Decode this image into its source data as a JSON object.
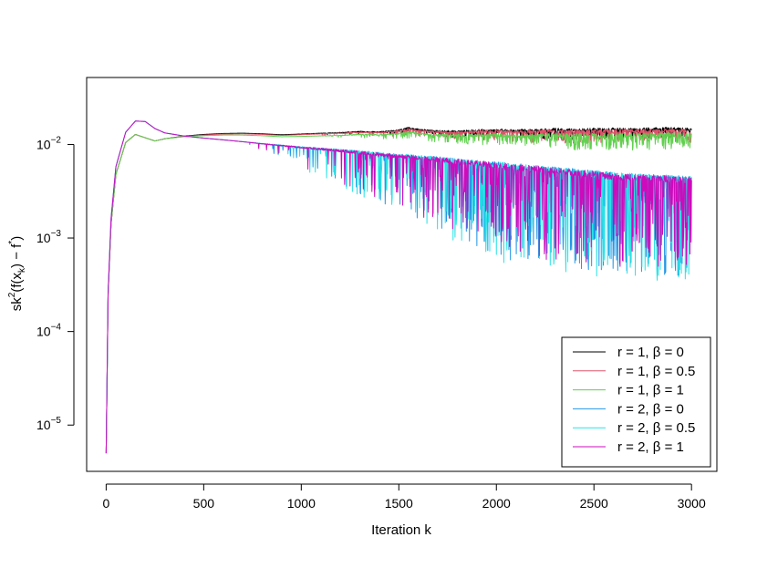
{
  "chart_data": {
    "type": "line",
    "title": "",
    "xlabel": "Iteration  k",
    "ylabel": "sk²(f(xₖ) − f*)",
    "ylabel_parts": {
      "base": "sk",
      "sup": "2",
      "mid": "(f(x",
      "sub": "k",
      "end": ") − f",
      "star": "*",
      "close": ")"
    },
    "xlim": [
      0,
      3000
    ],
    "ylim": [
      3.2e-06,
      0.052
    ],
    "log_y": true,
    "grid": false,
    "legend_position": "bottom-right",
    "x_ticks": [
      {
        "value": 0,
        "label": "0"
      },
      {
        "value": 500,
        "label": "500"
      },
      {
        "value": 1000,
        "label": "1000"
      },
      {
        "value": 1500,
        "label": "1500"
      },
      {
        "value": 2000,
        "label": "2000"
      },
      {
        "value": 2500,
        "label": "2500"
      },
      {
        "value": 3000,
        "label": "3000"
      }
    ],
    "y_ticks": [
      {
        "value": 0.01,
        "base": "10",
        "exp": "−2"
      },
      {
        "value": 0.001,
        "base": "10",
        "exp": "−3"
      },
      {
        "value": 0.0001,
        "base": "10",
        "exp": "−4"
      },
      {
        "value": 1e-05,
        "base": "10",
        "exp": "−5"
      }
    ],
    "series": [
      {
        "name": "r = 1, β = 0",
        "color": "#000000",
        "x": [
          0,
          10,
          25,
          50,
          100,
          150,
          200,
          250,
          300,
          400,
          500,
          600,
          700,
          800,
          900,
          1000,
          1100,
          1200,
          1300,
          1400,
          1500,
          1550,
          1600,
          1700,
          1800,
          1900,
          2000,
          2100,
          2200,
          2300,
          2400,
          2500,
          2600,
          2700,
          2800,
          2900,
          3000
        ],
        "y": [
          5e-06,
          0.00025,
          0.0014,
          0.0048,
          0.0105,
          0.0128,
          0.0118,
          0.0109,
          0.0115,
          0.0123,
          0.0128,
          0.0131,
          0.0132,
          0.013,
          0.0127,
          0.0129,
          0.0131,
          0.0133,
          0.0136,
          0.0134,
          0.014,
          0.0148,
          0.0142,
          0.0136,
          0.0135,
          0.0138,
          0.0139,
          0.0137,
          0.0137,
          0.014,
          0.0138,
          0.014,
          0.0141,
          0.0139,
          0.0142,
          0.0143,
          0.014
        ],
        "noise_from": 900,
        "noise_amplitude": 0.07,
        "noise_floor_amplitude": 0.04
      },
      {
        "name": "r = 1, β = 0.5",
        "color": "#DF536B",
        "x": [
          0,
          10,
          25,
          50,
          100,
          150,
          200,
          250,
          300,
          400,
          500,
          600,
          700,
          800,
          900,
          1000,
          1100,
          1200,
          1300,
          1400,
          1500,
          1550,
          1600,
          1700,
          1800,
          1900,
          2000,
          2100,
          2200,
          2300,
          2400,
          2500,
          2600,
          2700,
          2800,
          2900,
          3000
        ],
        "y": [
          5e-06,
          0.00025,
          0.0014,
          0.0048,
          0.0105,
          0.0128,
          0.0118,
          0.0109,
          0.0115,
          0.0122,
          0.0126,
          0.0129,
          0.013,
          0.0128,
          0.0125,
          0.0127,
          0.0129,
          0.013,
          0.0133,
          0.0131,
          0.0136,
          0.0143,
          0.0137,
          0.0132,
          0.013,
          0.0133,
          0.0133,
          0.0131,
          0.0132,
          0.0133,
          0.0132,
          0.0133,
          0.0134,
          0.0133,
          0.0134,
          0.0135,
          0.0133
        ],
        "noise_from": 900,
        "noise_amplitude": 0.09,
        "noise_floor_amplitude": 0.05
      },
      {
        "name": "r = 1, β = 1",
        "color": "#61D04F",
        "x": [
          0,
          10,
          25,
          50,
          100,
          150,
          200,
          250,
          300,
          400,
          500,
          600,
          700,
          800,
          900,
          1000,
          1100,
          1200,
          1300,
          1400,
          1500,
          1550,
          1600,
          1700,
          1800,
          1900,
          2000,
          2100,
          2200,
          2300,
          2400,
          2500,
          2600,
          2700,
          2800,
          2900,
          3000
        ],
        "y": [
          5e-06,
          0.00025,
          0.0014,
          0.0048,
          0.0105,
          0.0128,
          0.0118,
          0.0109,
          0.0115,
          0.0121,
          0.0124,
          0.0126,
          0.0126,
          0.0124,
          0.0121,
          0.0122,
          0.0123,
          0.0124,
          0.0126,
          0.0124,
          0.0128,
          0.0132,
          0.0127,
          0.0122,
          0.012,
          0.0121,
          0.012,
          0.0118,
          0.0118,
          0.0119,
          0.0118,
          0.0118,
          0.0119,
          0.0118,
          0.0119,
          0.012,
          0.0119
        ],
        "noise_from": 1000,
        "noise_amplitude": 0.12,
        "noise_floor_amplitude": 0.06
      },
      {
        "name": "r = 2, β = 0",
        "color": "#2297E6",
        "x": [
          0,
          10,
          25,
          50,
          100,
          150,
          200,
          250,
          300,
          400,
          500,
          600,
          700,
          800,
          900,
          1000,
          1100,
          1200,
          1300,
          1400,
          1500,
          1600,
          1700,
          1800,
          1900,
          2000,
          2100,
          2200,
          2300,
          2400,
          2500,
          2600,
          2700,
          2800,
          2900,
          3000
        ],
        "y": [
          5e-06,
          0.00026,
          0.0016,
          0.0058,
          0.0135,
          0.0178,
          0.0176,
          0.0148,
          0.0133,
          0.0123,
          0.0117,
          0.0112,
          0.0107,
          0.0101,
          0.0096,
          0.0091,
          0.0087,
          0.0083,
          0.0079,
          0.0075,
          0.0071,
          0.0068,
          0.0065,
          0.0061,
          0.0058,
          0.0055,
          0.0052,
          0.005,
          0.0048,
          0.0046,
          0.0044,
          0.0042,
          0.0041,
          0.004,
          0.0039,
          0.0038
        ],
        "noise_from": 700,
        "noise_amplitude": 0.2,
        "noise_floor_amplitude": 0.45
      },
      {
        "name": "r = 2, β = 0.5",
        "color": "#28E2E5",
        "x": [
          0,
          10,
          25,
          50,
          100,
          150,
          200,
          250,
          300,
          400,
          500,
          600,
          700,
          800,
          900,
          1000,
          1100,
          1200,
          1300,
          1400,
          1500,
          1600,
          1700,
          1800,
          1900,
          2000,
          2100,
          2200,
          2300,
          2400,
          2500,
          2600,
          2700,
          2800,
          2900,
          3000
        ],
        "y": [
          5e-06,
          0.00026,
          0.0016,
          0.0058,
          0.0135,
          0.0178,
          0.0176,
          0.0148,
          0.0133,
          0.0123,
          0.0117,
          0.0112,
          0.0107,
          0.0101,
          0.0096,
          0.0091,
          0.0087,
          0.0083,
          0.0079,
          0.0075,
          0.0071,
          0.0068,
          0.0065,
          0.0061,
          0.0058,
          0.0055,
          0.0052,
          0.005,
          0.0048,
          0.0046,
          0.0044,
          0.0042,
          0.0041,
          0.004,
          0.0039,
          0.0038
        ],
        "noise_from": 700,
        "noise_amplitude": 0.2,
        "noise_floor_amplitude": 0.48
      },
      {
        "name": "r = 2, β = 1",
        "color": "#CD0BBC",
        "x": [
          0,
          10,
          25,
          50,
          100,
          150,
          200,
          250,
          300,
          400,
          500,
          600,
          700,
          800,
          900,
          1000,
          1100,
          1200,
          1300,
          1400,
          1500,
          1600,
          1700,
          1800,
          1900,
          2000,
          2100,
          2200,
          2300,
          2400,
          2500,
          2600,
          2700,
          2800,
          2900,
          3000
        ],
        "y": [
          5e-06,
          0.00026,
          0.0016,
          0.0058,
          0.0135,
          0.0178,
          0.0176,
          0.0148,
          0.0133,
          0.0123,
          0.0117,
          0.0112,
          0.0107,
          0.0101,
          0.0096,
          0.0091,
          0.0087,
          0.0083,
          0.0079,
          0.0075,
          0.0071,
          0.0068,
          0.0065,
          0.0061,
          0.0058,
          0.0055,
          0.0052,
          0.005,
          0.0048,
          0.0046,
          0.0044,
          0.0042,
          0.0041,
          0.004,
          0.0039,
          0.0038
        ],
        "noise_from": 700,
        "noise_amplitude": 0.18,
        "noise_floor_amplitude": 0.42
      }
    ]
  }
}
